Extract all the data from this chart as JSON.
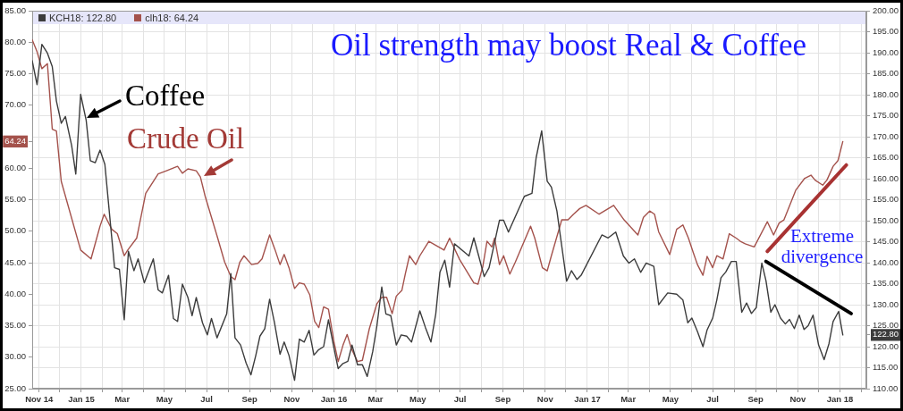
{
  "chart_data": {
    "type": "line",
    "title": "Oil strength may boost Real & Coffee",
    "annotations": [
      "Coffee",
      "Crude Oil",
      "Extreme divergence"
    ],
    "xlim": [
      "2014-10-22",
      "2018-02-08"
    ],
    "xticks": [
      {
        "value": "2014-11-01",
        "label": "Nov 14"
      },
      {
        "value": "2014-12-01",
        "label": null
      },
      {
        "value": "2015-01-01",
        "label": "Jan 15"
      },
      {
        "value": "2015-02-01",
        "label": null
      },
      {
        "value": "2015-03-01",
        "label": "Mar"
      },
      {
        "value": "2015-04-01",
        "label": null
      },
      {
        "value": "2015-05-01",
        "label": "May"
      },
      {
        "value": "2015-06-01",
        "label": null
      },
      {
        "value": "2015-07-01",
        "label": "Jul"
      },
      {
        "value": "2015-08-01",
        "label": null
      },
      {
        "value": "2015-09-01",
        "label": "Sep"
      },
      {
        "value": "2015-10-01",
        "label": null
      },
      {
        "value": "2015-11-01",
        "label": "Nov"
      },
      {
        "value": "2015-12-01",
        "label": null
      },
      {
        "value": "2016-01-01",
        "label": "Jan 16"
      },
      {
        "value": "2016-02-01",
        "label": null
      },
      {
        "value": "2016-03-01",
        "label": "Mar"
      },
      {
        "value": "2016-04-01",
        "label": null
      },
      {
        "value": "2016-05-01",
        "label": "May"
      },
      {
        "value": "2016-06-01",
        "label": null
      },
      {
        "value": "2016-07-01",
        "label": "Jul"
      },
      {
        "value": "2016-08-01",
        "label": null
      },
      {
        "value": "2016-09-01",
        "label": "Sep"
      },
      {
        "value": "2016-10-01",
        "label": null
      },
      {
        "value": "2016-11-01",
        "label": "Nov"
      },
      {
        "value": "2016-12-01",
        "label": null
      },
      {
        "value": "2017-01-01",
        "label": "Jan 17"
      },
      {
        "value": "2017-02-01",
        "label": null
      },
      {
        "value": "2017-03-01",
        "label": "Mar"
      },
      {
        "value": "2017-04-01",
        "label": null
      },
      {
        "value": "2017-05-01",
        "label": "May"
      },
      {
        "value": "2017-06-01",
        "label": null
      },
      {
        "value": "2017-07-01",
        "label": "Jul"
      },
      {
        "value": "2017-08-01",
        "label": null
      },
      {
        "value": "2017-09-01",
        "label": "Sep"
      },
      {
        "value": "2017-10-01",
        "label": null
      },
      {
        "value": "2017-11-01",
        "label": "Nov"
      },
      {
        "value": "2017-12-01",
        "label": null
      },
      {
        "value": "2018-01-01",
        "label": "Jan 18"
      },
      {
        "value": "2018-02-01",
        "label": null
      }
    ],
    "ylim": [
      25,
      85
    ],
    "yticks": [
      {
        "value": 25,
        "label": "25.00"
      },
      {
        "value": 30,
        "label": "30.00"
      },
      {
        "value": 35,
        "label": "35.00"
      },
      {
        "value": 40,
        "label": "40.00"
      },
      {
        "value": 45,
        "label": "45.00"
      },
      {
        "value": 50,
        "label": "50.00"
      },
      {
        "value": 55,
        "label": "55.00"
      },
      {
        "value": 60,
        "label": "60.00"
      },
      64.24,
      {
        "value": 70,
        "label": "70.00"
      },
      {
        "value": 75,
        "label": "75.00"
      },
      {
        "value": 80,
        "label": "80.00"
      },
      {
        "value": 85,
        "label": "85.00"
      }
    ],
    "y2lim": [
      110,
      200
    ],
    "y2ticks": [
      {
        "value": 110,
        "label": "110.00"
      },
      {
        "value": 115,
        "label": "115.00"
      },
      {
        "value": 120,
        "label": "120.00"
      },
      {
        "value": 122.8,
        "label": "122.80"
      },
      {
        "value": 125,
        "label": "125.00"
      },
      {
        "value": 130,
        "label": "130.00"
      },
      {
        "value": 135,
        "label": "135.00"
      },
      {
        "value": 140,
        "label": "140.00"
      },
      {
        "value": 145,
        "label": "145.00"
      },
      {
        "value": 150,
        "label": "150.00"
      },
      {
        "value": 155,
        "label": "155.00"
      },
      {
        "value": 160,
        "label": "160.00"
      },
      {
        "value": 165,
        "label": "165.00"
      },
      {
        "value": 170,
        "label": "170.00"
      },
      {
        "value": 175,
        "label": "175.00"
      },
      {
        "value": 180,
        "label": "180.00"
      },
      {
        "value": 185,
        "label": "185.00"
      },
      {
        "value": 190,
        "label": "190.00"
      },
      {
        "value": 195,
        "label": "195.00"
      },
      {
        "value": 200,
        "label": "200.00"
      }
    ],
    "grid": true,
    "legend": "top left",
    "series": [
      {
        "name": "KCH18: 122.80",
        "color": "#3c3c3c",
        "axis": "y2",
        "x": [
          "2014-10-22",
          "2014-10-29",
          "2014-11-05",
          "2014-11-13",
          "2014-11-20",
          "2014-11-26",
          "2014-12-03",
          "2014-12-09",
          "2014-12-18",
          "2014-12-24",
          "2014-12-31",
          "2015-01-08",
          "2015-01-14",
          "2015-01-21",
          "2015-01-28",
          "2015-02-04",
          "2015-02-18",
          "2015-02-25",
          "2015-03-04",
          "2015-03-10",
          "2015-03-18",
          "2015-03-24",
          "2015-04-02",
          "2015-04-15",
          "2015-04-22",
          "2015-04-28",
          "2015-05-07",
          "2015-05-14",
          "2015-05-20",
          "2015-05-27",
          "2015-06-04",
          "2015-06-10",
          "2015-06-16",
          "2015-06-25",
          "2015-07-02",
          "2015-07-08",
          "2015-07-16",
          "2015-07-30",
          "2015-08-05",
          "2015-08-11",
          "2015-08-19",
          "2015-08-27",
          "2015-09-03",
          "2015-09-10",
          "2015-09-16",
          "2015-09-23",
          "2015-09-30",
          "2015-10-07",
          "2015-10-15",
          "2015-10-21",
          "2015-10-28",
          "2015-11-05",
          "2015-11-12",
          "2015-11-19",
          "2015-11-26",
          "2015-12-03",
          "2015-12-10",
          "2015-12-17",
          "2015-12-24",
          "2016-01-01",
          "2016-01-07",
          "2016-01-14",
          "2016-01-21",
          "2016-01-27",
          "2016-02-04",
          "2016-02-11",
          "2016-02-18",
          "2016-02-26",
          "2016-03-03",
          "2016-03-10",
          "2016-03-16",
          "2016-03-23",
          "2016-03-31",
          "2016-04-07",
          "2016-04-15",
          "2016-04-22",
          "2016-05-04",
          "2016-05-12",
          "2016-05-20",
          "2016-05-27",
          "2016-06-02",
          "2016-06-09",
          "2016-06-16",
          "2016-06-23",
          "2016-07-14",
          "2016-07-21",
          "2016-08-05",
          "2016-08-12",
          "2016-08-27",
          "2016-09-02",
          "2016-09-09",
          "2016-10-02",
          "2016-10-13",
          "2016-10-19",
          "2016-10-27",
          "2016-11-04",
          "2016-11-10",
          "2016-11-18",
          "2016-12-02",
          "2016-12-09",
          "2016-12-17",
          "2016-12-23",
          "2017-01-22",
          "2017-01-31",
          "2017-02-11",
          "2017-02-22",
          "2017-03-02",
          "2017-03-10",
          "2017-03-19",
          "2017-03-27",
          "2017-04-07",
          "2017-04-14",
          "2017-04-27",
          "2017-05-10",
          "2017-05-19",
          "2017-05-26",
          "2017-06-01",
          "2017-06-09",
          "2017-06-17",
          "2017-06-23",
          "2017-07-01",
          "2017-07-07",
          "2017-07-13",
          "2017-07-20",
          "2017-07-28",
          "2017-08-04",
          "2017-08-12",
          "2017-08-19",
          "2017-08-26",
          "2017-09-02",
          "2017-09-10",
          "2017-09-16",
          "2017-09-23",
          "2017-09-29",
          "2017-10-07",
          "2017-10-14",
          "2017-10-20",
          "2017-10-27",
          "2017-11-03",
          "2017-11-10",
          "2017-11-16",
          "2017-11-23",
          "2017-12-01",
          "2017-12-09",
          "2017-12-16",
          "2017-12-22",
          "2017-12-30",
          "2018-01-05"
        ],
        "values": [
          188.1,
          182.4,
          192.0,
          189.9,
          186.7,
          178.5,
          173.2,
          174.8,
          167.9,
          161.1,
          180.1,
          173.9,
          164.3,
          163.8,
          166.8,
          163.4,
          138.8,
          138.4,
          126.4,
          142.7,
          138.1,
          140.9,
          135.2,
          140.9,
          133.5,
          132.8,
          137.0,
          126.7,
          126.0,
          134.9,
          131.7,
          127.4,
          131.7,
          125.7,
          122.8,
          126.7,
          122.1,
          127.8,
          137.4,
          122.1,
          120.4,
          116.1,
          113.3,
          117.9,
          122.5,
          124.3,
          131.3,
          125.7,
          118.2,
          121.1,
          117.9,
          112.0,
          121.8,
          121.1,
          123.9,
          118.0,
          119.3,
          120.0,
          126.4,
          119.6,
          114.8,
          116.0,
          116.5,
          120.4,
          115.7,
          115.7,
          112.9,
          118.9,
          125.0,
          134.2,
          127.8,
          127.4,
          120.4,
          122.8,
          122.5,
          121.1,
          128.5,
          124.6,
          121.1,
          127.8,
          137.7,
          140.6,
          134.2,
          144.5,
          141.6,
          145.9,
          136.7,
          138.8,
          150.1,
          150.1,
          147.3,
          155.8,
          156.5,
          165.0,
          171.4,
          159.4,
          158.0,
          152.3,
          135.6,
          138.1,
          136.0,
          137.0,
          146.6,
          145.9,
          147.3,
          141.6,
          139.9,
          140.9,
          137.7,
          139.9,
          139.1,
          130.0,
          132.8,
          132.5,
          131.1,
          125.7,
          126.8,
          123.6,
          120.0,
          124.0,
          126.8,
          131.1,
          136.4,
          137.8,
          140.3,
          140.3,
          128.2,
          130.4,
          127.9,
          129.3,
          139.9,
          135.7,
          128.2,
          130.0,
          126.8,
          125.4,
          126.5,
          124.3,
          127.5,
          124.1,
          125.0,
          127.5,
          120.4,
          116.9,
          120.7,
          126.0,
          128.4,
          122.8
        ]
      },
      {
        "name": "clh18: 64.24",
        "color": "#a4524c",
        "x": [
          "2014-10-22",
          "2014-10-29",
          "2014-11-05",
          "2014-11-13",
          "2014-11-20",
          "2014-11-26",
          "2014-12-03",
          "2014-12-31",
          "2015-01-15",
          "2015-01-28",
          "2015-02-03",
          "2015-02-14",
          "2015-02-22",
          "2015-03-04",
          "2015-03-09",
          "2015-03-22",
          "2015-04-04",
          "2015-04-22",
          "2015-05-04",
          "2015-05-20",
          "2015-05-27",
          "2015-06-04",
          "2015-06-16",
          "2015-06-22",
          "2015-06-29",
          "2015-07-17",
          "2015-07-27",
          "2015-08-05",
          "2015-08-11",
          "2015-08-18",
          "2015-08-24",
          "2015-09-04",
          "2015-09-13",
          "2015-09-19",
          "2015-09-30",
          "2015-10-08",
          "2015-10-15",
          "2015-10-21",
          "2015-10-28",
          "2015-11-05",
          "2015-11-12",
          "2015-11-19",
          "2015-11-27",
          "2015-12-04",
          "2015-12-10",
          "2015-12-17",
          "2015-12-24",
          "2016-01-01",
          "2016-01-07",
          "2016-01-14",
          "2016-01-20",
          "2016-01-26",
          "2016-02-04",
          "2016-02-11",
          "2016-02-21",
          "2016-03-03",
          "2016-03-10",
          "2016-03-17",
          "2016-03-25",
          "2016-03-31",
          "2016-04-08",
          "2016-04-13",
          "2016-04-19",
          "2016-04-28",
          "2016-05-04",
          "2016-05-17",
          "2016-06-08",
          "2016-06-16",
          "2016-06-30",
          "2016-07-21",
          "2016-07-27",
          "2016-08-03",
          "2016-08-09",
          "2016-08-16",
          "2016-08-20",
          "2016-08-27",
          "2016-09-02",
          "2016-09-11",
          "2016-09-19",
          "2016-10-11",
          "2016-10-17",
          "2016-10-28",
          "2016-11-04",
          "2016-11-10",
          "2016-11-25",
          "2016-12-04",
          "2016-12-12",
          "2016-12-21",
          "2016-12-30",
          "2017-01-18",
          "2017-02-08",
          "2017-02-23",
          "2017-03-15",
          "2017-03-23",
          "2017-04-01",
          "2017-04-08",
          "2017-04-14",
          "2017-04-30",
          "2017-05-10",
          "2017-05-19",
          "2017-05-27",
          "2017-06-03",
          "2017-06-09",
          "2017-06-17",
          "2017-06-23",
          "2017-07-01",
          "2017-07-07",
          "2017-07-16",
          "2017-07-25",
          "2017-08-04",
          "2017-08-10",
          "2017-08-17",
          "2017-08-30",
          "2017-09-18",
          "2017-09-27",
          "2017-10-05",
          "2017-10-12",
          "2017-10-29",
          "2017-11-11",
          "2017-11-20",
          "2017-11-26",
          "2017-12-07",
          "2017-12-13",
          "2017-12-22",
          "2017-12-29",
          "2018-01-05"
        ],
        "values": [
          80.4,
          78.5,
          75.8,
          76.6,
          66.2,
          65.9,
          57.9,
          47.0,
          45.6,
          50.8,
          52.7,
          50.3,
          49.6,
          46.1,
          47.0,
          48.9,
          56.0,
          59.1,
          59.6,
          60.3,
          59.2,
          59.9,
          59.6,
          58.6,
          55.5,
          48.9,
          45.1,
          42.8,
          42.3,
          45.1,
          46.1,
          44.7,
          44.9,
          45.6,
          49.4,
          47.0,
          44.7,
          46.3,
          44.2,
          40.9,
          41.8,
          41.6,
          39.9,
          35.7,
          34.7,
          38.0,
          37.6,
          32.4,
          29.3,
          31.9,
          33.6,
          31.4,
          29.3,
          29.5,
          34.5,
          38.5,
          39.5,
          39.5,
          36.9,
          39.7,
          40.6,
          43.2,
          46.1,
          44.7,
          46.1,
          48.4,
          47.0,
          48.9,
          45.6,
          41.8,
          41.6,
          44.4,
          48.4,
          47.5,
          48.9,
          44.7,
          46.1,
          43.2,
          45.1,
          50.8,
          48.9,
          44.2,
          43.7,
          46.1,
          51.8,
          51.8,
          52.7,
          53.6,
          54.1,
          52.7,
          54.1,
          51.8,
          49.4,
          52.2,
          53.2,
          52.7,
          49.9,
          46.3,
          50.3,
          51.0,
          48.9,
          46.6,
          44.7,
          43.0,
          46.0,
          44.2,
          46.1,
          45.6,
          49.6,
          48.9,
          48.4,
          48.0,
          47.5,
          51.5,
          49.4,
          51.3,
          51.8,
          56.5,
          58.4,
          58.9,
          58.1,
          57.3,
          58.1,
          60.3,
          61.2,
          64.24
        ]
      },
      {
        "color": "#000000",
        "axis": "y2",
        "x": [
          "2017-09-16",
          "2018-01-17"
        ],
        "values": [
          140.3,
          127.9
        ]
      },
      {
        "color": "#a83232",
        "x": [
          "2017-09-18",
          "2018-01-10"
        ],
        "values": [
          46.8,
          60.5
        ]
      }
    ]
  }
}
